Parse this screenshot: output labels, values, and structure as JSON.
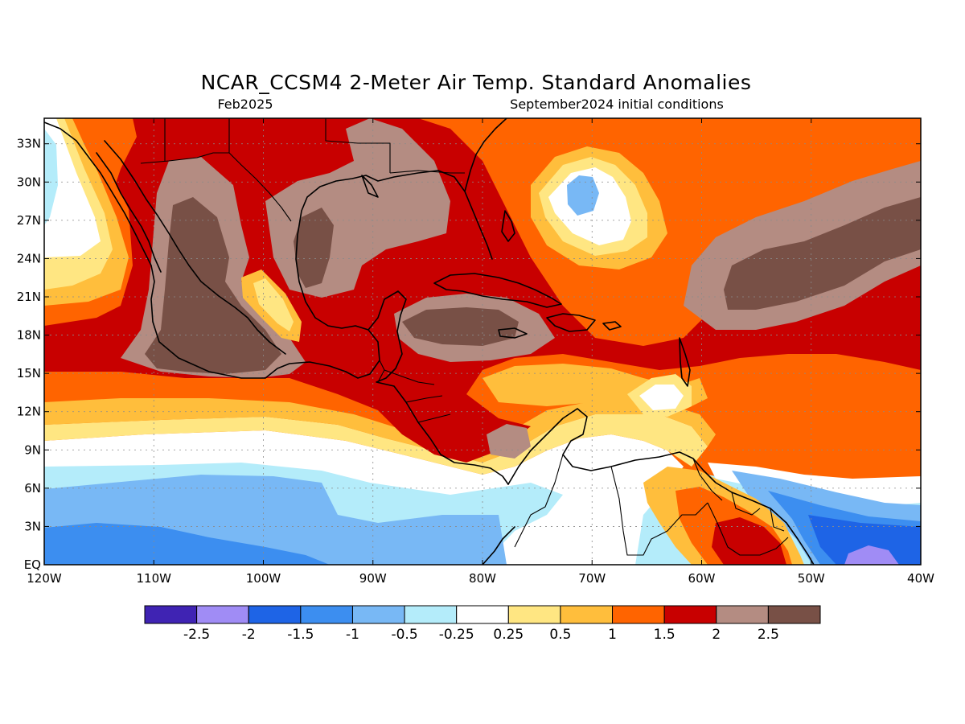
{
  "header": {
    "title": "NCAR_CCSM4 2-Meter Air Temp. Standard Anomalies",
    "valid_month": "Feb2025",
    "init_label": "September2024 initial conditions"
  },
  "map": {
    "lat_range": [
      0,
      35
    ],
    "lon_range": [
      -120,
      -40
    ],
    "lat_ticks": [
      {
        "value": 0,
        "label": "EQ"
      },
      {
        "value": 3,
        "label": "3N"
      },
      {
        "value": 6,
        "label": "6N"
      },
      {
        "value": 9,
        "label": "9N"
      },
      {
        "value": 12,
        "label": "12N"
      },
      {
        "value": 15,
        "label": "15N"
      },
      {
        "value": 18,
        "label": "18N"
      },
      {
        "value": 21,
        "label": "21N"
      },
      {
        "value": 24,
        "label": "24N"
      },
      {
        "value": 27,
        "label": "27N"
      },
      {
        "value": 30,
        "label": "30N"
      },
      {
        "value": 33,
        "label": "33N"
      }
    ],
    "lon_ticks": [
      {
        "value": -120,
        "label": "120W"
      },
      {
        "value": -110,
        "label": "110W"
      },
      {
        "value": -100,
        "label": "100W"
      },
      {
        "value": -90,
        "label": "90W"
      },
      {
        "value": -80,
        "label": "80W"
      },
      {
        "value": -70,
        "label": "70W"
      },
      {
        "value": -60,
        "label": "60W"
      },
      {
        "value": -50,
        "label": "50W"
      },
      {
        "value": -40,
        "label": "40W"
      }
    ]
  },
  "colorbar": {
    "colors": [
      "#3f23b3",
      "#a08cf5",
      "#1e64e6",
      "#3c8ef0",
      "#78b8f5",
      "#b4ecfa",
      "#ffffff",
      "#ffe682",
      "#ffbe3c",
      "#ff6400",
      "#c80000",
      "#b48c82",
      "#785046"
    ],
    "labels": [
      "-2.5",
      "-2",
      "-1.5",
      "-1",
      "-0.5",
      "-0.25",
      "0.25",
      "0.5",
      "1",
      "1.5",
      "2",
      "2.5"
    ]
  }
}
